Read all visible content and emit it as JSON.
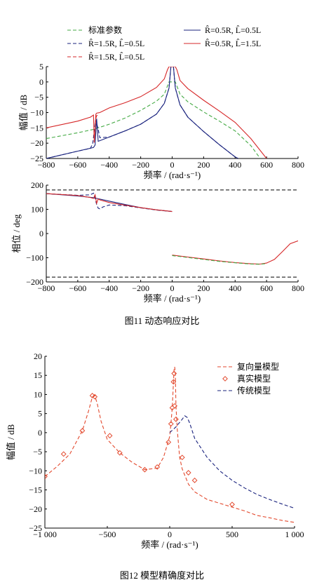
{
  "figure11": {
    "caption": "图11   动态响应对比",
    "legend": {
      "std": "标准参数",
      "a": "R̂=0.5R, L̂=0.5L",
      "b": "R̂=1.5R, L̂=0.5L",
      "c": "R̂=0.5R, L̂=1.5L",
      "d": "R̂=1.5R, L̂=0.5L"
    }
  },
  "figure12": {
    "caption": "图12   模型精确度对比"
  },
  "chart_data": [
    {
      "type": "line",
      "xlabel": "频率 / (rad·s⁻¹)",
      "ylabel": "幅值 / dB",
      "xlim": [
        -800,
        800
      ],
      "ylim": [
        -25,
        5
      ],
      "xticks": [
        "−800",
        "−600",
        "−400",
        "−200",
        "0",
        "200",
        "400",
        "600",
        "800"
      ],
      "yticks": [
        "5",
        "0",
        "−5",
        "−10",
        "−15",
        "−20",
        "−25"
      ],
      "legend_position": "top",
      "series": [
        {
          "name": "标准参数",
          "color": "#44aa44",
          "dash": "dashed",
          "x": [
            -800,
            -600,
            -500,
            -400,
            -300,
            -200,
            -100,
            -50,
            -20,
            20,
            50,
            100,
            200,
            300,
            400,
            500,
            560
          ],
          "y": [
            -18.5,
            -16.6,
            -15.5,
            -13.8,
            -11.8,
            -9.3,
            -6.3,
            -4,
            0,
            0,
            -4,
            -6.5,
            -9.8,
            -12.8,
            -16,
            -20.8,
            -25
          ]
        },
        {
          "name": "R̂=0.5R, L̂=0.5L",
          "color": "#1a237e",
          "dash": "solid",
          "x": [
            -800,
            -600,
            -500,
            -490,
            -480,
            -470,
            -400,
            -300,
            -200,
            -100,
            -50,
            -20,
            -8,
            8,
            20,
            50,
            100,
            200,
            300,
            400,
            420
          ],
          "y": [
            -25,
            -22.6,
            -21.4,
            -20.6,
            -12,
            -19.4,
            -18,
            -16,
            -13.8,
            -10.5,
            -7,
            -2,
            5,
            5,
            -2,
            -7.5,
            -11.5,
            -16.2,
            -20.5,
            -24.5,
            -25
          ]
        },
        {
          "name": "R̂=1.5R, L̂=0.5L",
          "color": "#1a237e",
          "dash": "dashed",
          "x": [
            -800,
            -600,
            -520,
            -505,
            -495,
            -490,
            -485,
            -470,
            -460,
            -400,
            -300,
            -200,
            -100,
            -50,
            -20,
            -8,
            8,
            20,
            50,
            100,
            200,
            300,
            400,
            420
          ],
          "y": [
            -25,
            -22.6,
            -21.7,
            -20.2,
            -16,
            -13.6,
            -12.5,
            -15.4,
            -18.2,
            -18,
            -16,
            -13.8,
            -10.5,
            -7,
            -2,
            5,
            5,
            -2,
            -7.5,
            -11.5,
            -16.2,
            -20.5,
            -24.5,
            -25
          ]
        },
        {
          "name": "R̂=0.5R, L̂=1.5L",
          "color": "#d62728",
          "dash": "solid",
          "x": [
            -800,
            -600,
            -520,
            -500,
            -495,
            -490,
            -485,
            -480,
            -470,
            -460,
            -400,
            -300,
            -200,
            -100,
            -50,
            -30,
            -20,
            20,
            30,
            50,
            100,
            200,
            300,
            400,
            500,
            600
          ],
          "y": [
            -15,
            -12.8,
            -11.5,
            -10.8,
            -19.8,
            -15.5,
            -10.5,
            -10.2,
            -10.1,
            -10,
            -8.5,
            -6.8,
            -4.8,
            -1.8,
            1,
            4,
            5,
            5,
            4,
            0.5,
            -2.2,
            -6,
            -9.5,
            -13.2,
            -18.5,
            -25
          ]
        },
        {
          "name": "R̂=1.5R, L̂=0.5L",
          "color": "#d62728",
          "dash": "dashed",
          "x": [
            -490,
            -485,
            -480,
            -470
          ],
          "y": [
            -13.6,
            -12,
            -11,
            -10.8
          ]
        }
      ]
    },
    {
      "type": "line",
      "xlabel": "频率 / (rad·s⁻¹)",
      "ylabel": "相位 / deg",
      "xlim": [
        -800,
        800
      ],
      "ylim": [
        -200,
        200
      ],
      "xticks": [
        "−800",
        "−600",
        "−400",
        "−200",
        "0",
        "200",
        "400",
        "600",
        "800"
      ],
      "yticks": [
        "200",
        "100",
        "0",
        "−100",
        "−200"
      ],
      "reference_lines": [
        180,
        -180
      ],
      "series": [
        {
          "name": "R̂=0.5R, L̂=0.5L",
          "color": "#1a237e",
          "dash": "solid",
          "x": [
            -800,
            -600,
            -500,
            -400,
            -300,
            -200,
            -100,
            0
          ],
          "y": [
            165,
            155,
            148,
            134,
            120,
            107,
            98,
            91
          ]
        },
        {
          "name": "R̂=1.5R, L̂=0.5L",
          "color": "#1a237e",
          "dash": "dashed",
          "x": [
            -800,
            -600,
            -520,
            -500,
            -490,
            -480,
            -470,
            -460,
            -440,
            -400,
            -300,
            -200,
            -100,
            0
          ],
          "y": [
            165,
            158,
            160,
            167,
            145,
            120,
            105,
            102,
            110,
            118,
            115,
            106,
            97,
            91
          ]
        },
        {
          "name": "R̂=0.5R, L̂=1.5L",
          "color": "#d62728",
          "dash": "solid",
          "x": [
            -800,
            -600,
            -520,
            -500,
            -490,
            -485,
            -480,
            -470,
            -460,
            -400,
            -300,
            -200,
            -100,
            0,
            0,
            100,
            200,
            300,
            400,
            500,
            560,
            600,
            650,
            700,
            750,
            800
          ],
          "y": [
            165,
            157,
            149,
            145,
            160,
            142,
            125,
            143,
            139,
            128,
            117,
            107,
            98,
            91,
            -89,
            -97,
            -105,
            -113,
            -120,
            -125,
            -126,
            -122,
            -107,
            -75,
            -42,
            -30
          ]
        },
        {
          "name": "标准参数",
          "color": "#44aa44",
          "dash": "dashed",
          "x": [
            0,
            100,
            200,
            300,
            400,
            500,
            560,
            600
          ],
          "y": [
            -91,
            -99,
            -107,
            -115,
            -121,
            -126,
            -127,
            -124
          ]
        }
      ]
    },
    {
      "type": "line",
      "xlabel": "频率 / (rad·s⁻¹)",
      "ylabel": "幅值 / dB",
      "xlim": [
        -1000,
        1000
      ],
      "ylim": [
        -25,
        20
      ],
      "xticks": [
        "−1 000",
        "−500",
        "0",
        "500",
        "1 000"
      ],
      "yticks": [
        "20",
        "15",
        "10",
        "5",
        "0",
        "−5",
        "−10",
        "−15",
        "−20",
        "−25"
      ],
      "legend_position": "top-right",
      "series": [
        {
          "name": "复向量模型",
          "color": "#e34a2f",
          "dash": "dashed",
          "x": [
            -1000,
            -900,
            -800,
            -700,
            -650,
            -620,
            -600,
            -580,
            -550,
            -500,
            -400,
            -300,
            -200,
            -100,
            -50,
            0,
            10,
            20,
            30,
            35,
            40,
            45,
            50,
            60,
            70,
            80,
            100,
            150,
            200,
            300,
            400,
            500,
            600,
            700,
            800,
            900,
            1000
          ],
          "y": [
            -11.5,
            -8.8,
            -5.6,
            0.5,
            5.7,
            9.3,
            9.7,
            7.5,
            3,
            -1.8,
            -5.3,
            -7.8,
            -9.7,
            -9.3,
            -6.5,
            -1,
            2.5,
            6.5,
            13,
            16.8,
            17.2,
            15.5,
            7,
            1,
            -3,
            -6.5,
            -9.5,
            -13.5,
            -15.5,
            -17.5,
            -18.5,
            -19.5,
            -20.5,
            -21.7,
            -22.3,
            -23,
            -23.5
          ]
        },
        {
          "name": "真实模型",
          "color": "#e34a2f",
          "dash": "markers",
          "x": [
            -1000,
            -850,
            -700,
            -620,
            -600,
            -480,
            -400,
            -200,
            -100,
            -10,
            10,
            20,
            30,
            35,
            40,
            50,
            100,
            150,
            200,
            500
          ],
          "y": [
            -11.5,
            -5.6,
            0.5,
            9.7,
            9.4,
            -0.8,
            -5.3,
            -9.7,
            -9,
            -2.5,
            2.3,
            6.5,
            13.3,
            15.5,
            7,
            3.5,
            -6.5,
            -10.5,
            -12.5,
            -18.8
          ]
        },
        {
          "name": "传统模型",
          "color": "#1a237e",
          "dash": "dashed",
          "x": [
            0,
            50,
            100,
            120,
            140,
            160,
            200,
            300,
            400,
            500,
            600,
            700,
            800,
            900,
            1000
          ],
          "y": [
            0,
            1.5,
            3.5,
            4.4,
            4,
            2.5,
            -1.5,
            -6.5,
            -10,
            -12.5,
            -14.5,
            -16.2,
            -17.5,
            -18.7,
            -19.8
          ]
        }
      ]
    }
  ]
}
